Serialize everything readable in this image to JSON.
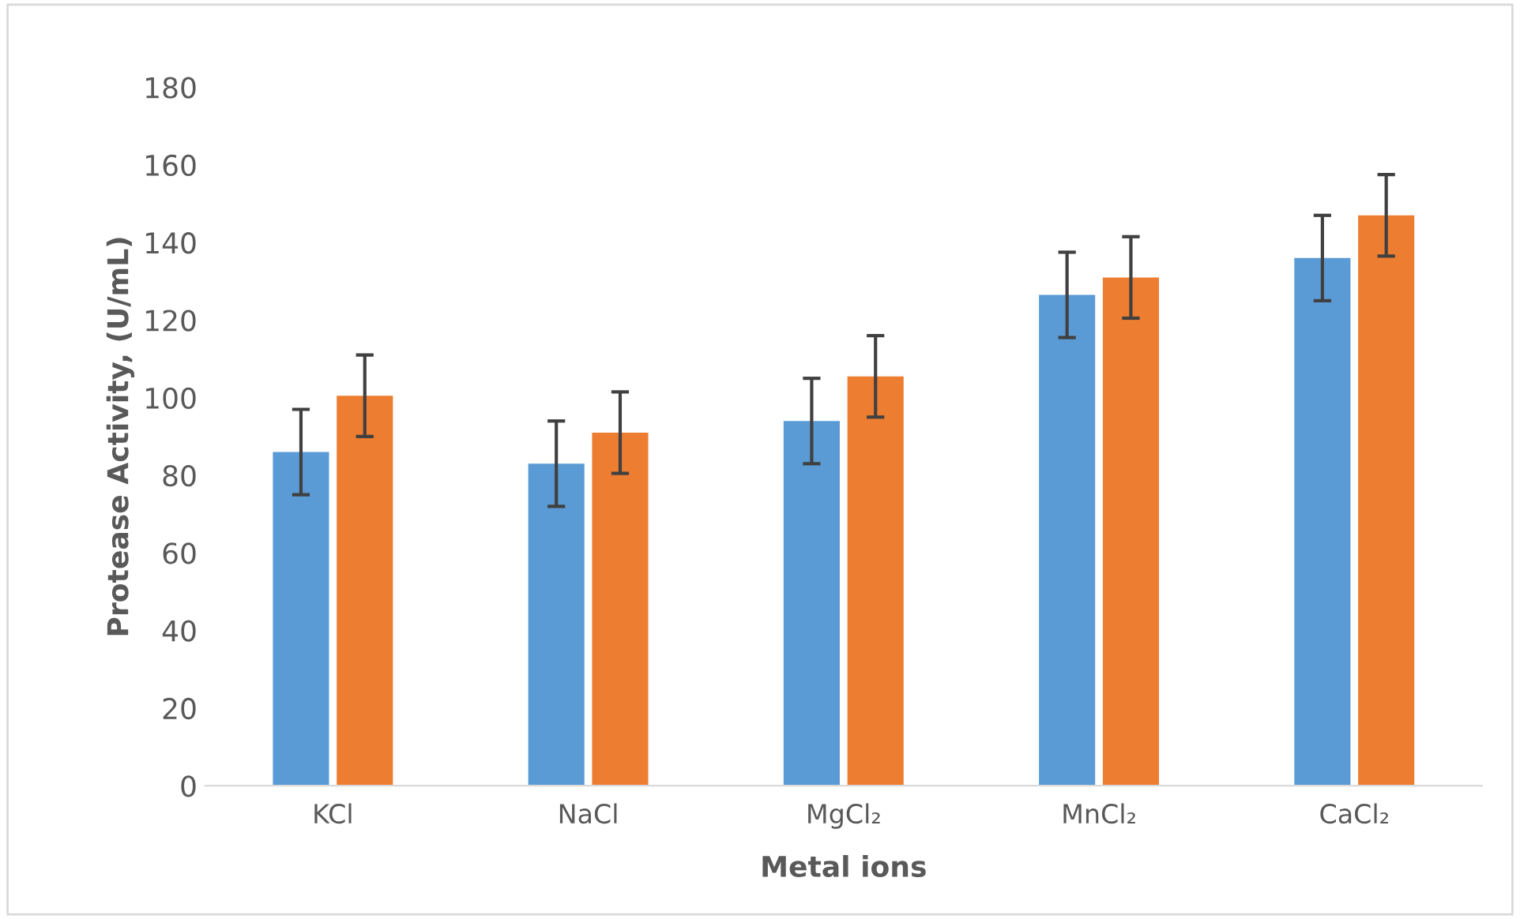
{
  "chart_data": {
    "type": "bar",
    "xlabel": "Metal ions",
    "ylabel": "Protease Activity, (U/mL)",
    "categories": [
      "KCl",
      "NaCl",
      "MgCl₂",
      "MnCl₂",
      "CaCl₂"
    ],
    "series": [
      {
        "color": "#5b9bd5",
        "values": [
          86,
          83,
          94,
          126.5,
          136
        ],
        "errors": [
          11,
          11,
          11,
          11,
          11
        ]
      },
      {
        "color": "#ed7d31",
        "values": [
          100.5,
          91,
          105.5,
          131,
          147
        ],
        "errors": [
          10.5,
          10.5,
          10.5,
          10.5,
          10.5
        ]
      }
    ],
    "ylim": [
      0,
      180
    ],
    "yticks": [
      0,
      20,
      40,
      60,
      80,
      100,
      120,
      140,
      160,
      180
    ],
    "grid": false,
    "legend": false
  }
}
